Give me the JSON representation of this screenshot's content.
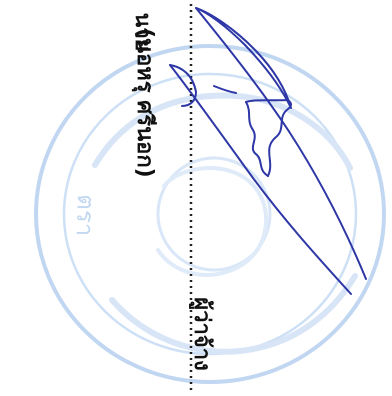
{
  "document": {
    "top_text": "นาย",
    "name_text": "(นอหรุ ศรีนอก)",
    "role_text": "ผู้ว่าจ้าง"
  },
  "stamp": {
    "text": "ตรา",
    "color": "#8fb7e6"
  },
  "signature": {
    "color": "#2e37a6"
  },
  "style": {
    "dot_line_color": "#222222"
  }
}
